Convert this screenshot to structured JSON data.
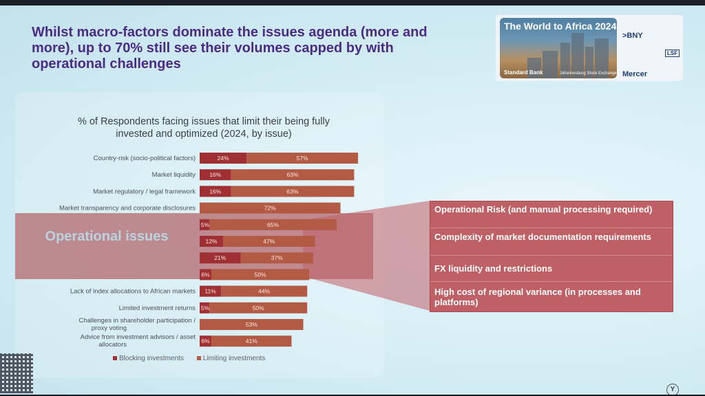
{
  "slide": {
    "title": "Whilst macro-factors dominate the issues agenda (more and more), up to 70% still see their volumes capped by with operational challenges",
    "operational_label": "Operational issues"
  },
  "logo": {
    "event_title": "The World to Africa 2024",
    "footer_left": "Standard Bank",
    "footer_right": "Johannesburg Stock Exchange",
    "sponsors": [
      ">BNY",
      "Mercer",
      "LSF"
    ]
  },
  "operational_issues": [
    "Operational Risk (and manual processing required)",
    "Complexity of market documentation requirements",
    "FX liquidity and restrictions",
    "High cost of regional variance (in processes and platforms)"
  ],
  "chart_data": {
    "type": "bar",
    "orientation": "horizontal",
    "stacked": true,
    "title": "% of Respondents facing issues that limit their being fully invested and optimized (2024, by issue)",
    "categories": [
      "Country-risk (socio-political factors)",
      "Market liquidity",
      "Market regulatory / legal framework",
      "Market transparency and corporate disclosures",
      "",
      "",
      "",
      "",
      "Lack of index allocations to African markets",
      "Limited investment returns",
      "Challenges in shareholder participation / proxy voting",
      "Advice from investment advisors / asset allocators"
    ],
    "series": [
      {
        "name": "Blocking investments",
        "values": [
          24,
          16,
          16,
          0,
          5,
          12,
          21,
          6,
          11,
          5,
          0,
          6
        ],
        "labels": [
          "24%",
          "16%",
          "16%",
          "",
          "5%",
          "12%",
          "21%",
          "6%",
          "11%",
          "5%",
          "",
          "6%"
        ]
      },
      {
        "name": "Limiting investments",
        "values": [
          57,
          63,
          63,
          72,
          65,
          47,
          37,
          50,
          44,
          50,
          53,
          41
        ],
        "labels": [
          "57%",
          "63%",
          "63%",
          "72%",
          "65%",
          "47%",
          "37%",
          "50%",
          "44%",
          "50%",
          "53%",
          "41%"
        ]
      }
    ],
    "colors": {
      "blocking": "#a02f33",
      "limiting": "#b35a45"
    },
    "legend_position": "bottom"
  }
}
